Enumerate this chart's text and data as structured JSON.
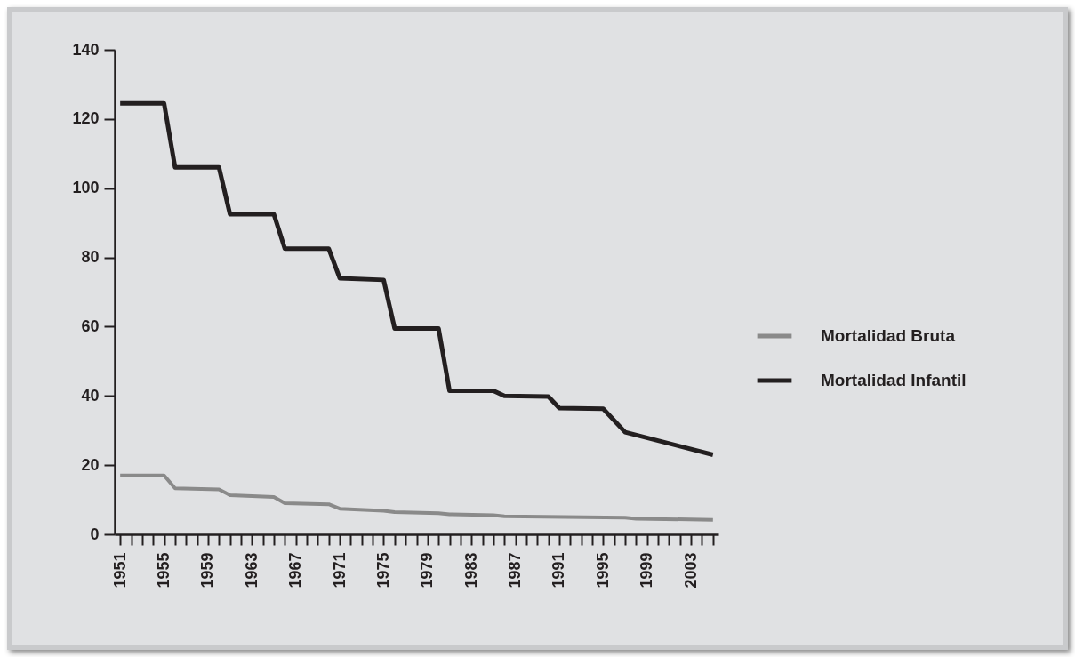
{
  "chart_data": {
    "type": "line",
    "xlim": [
      1950.5,
      2005.5
    ],
    "xticks": [
      1951,
      {
        "value": 1952,
        "label": null
      },
      {
        "value": 1953,
        "label": null
      },
      {
        "value": 1954,
        "label": null
      },
      1955,
      {
        "value": 1956,
        "label": null
      },
      {
        "value": 1957,
        "label": null
      },
      {
        "value": 1958,
        "label": null
      },
      1959,
      {
        "value": 1960,
        "label": null
      },
      {
        "value": 1961,
        "label": null
      },
      {
        "value": 1962,
        "label": null
      },
      1963,
      {
        "value": 1964,
        "label": null
      },
      {
        "value": 1965,
        "label": null
      },
      {
        "value": 1966,
        "label": null
      },
      1967,
      {
        "value": 1968,
        "label": null
      },
      {
        "value": 1969,
        "label": null
      },
      {
        "value": 1970,
        "label": null
      },
      1971,
      {
        "value": 1972,
        "label": null
      },
      {
        "value": 1973,
        "label": null
      },
      {
        "value": 1974,
        "label": null
      },
      1975,
      {
        "value": 1976,
        "label": null
      },
      {
        "value": 1977,
        "label": null
      },
      {
        "value": 1978,
        "label": null
      },
      1979,
      {
        "value": 1980,
        "label": null
      },
      {
        "value": 1981,
        "label": null
      },
      {
        "value": 1982,
        "label": null
      },
      1983,
      {
        "value": 1984,
        "label": null
      },
      {
        "value": 1985,
        "label": null
      },
      {
        "value": 1986,
        "label": null
      },
      1987,
      {
        "value": 1988,
        "label": null
      },
      {
        "value": 1989,
        "label": null
      },
      {
        "value": 1990,
        "label": null
      },
      1991,
      {
        "value": 1992,
        "label": null
      },
      {
        "value": 1993,
        "label": null
      },
      {
        "value": 1994,
        "label": null
      },
      1995,
      {
        "value": 1996,
        "label": null
      },
      {
        "value": 1997,
        "label": null
      },
      {
        "value": 1998,
        "label": null
      },
      1999,
      {
        "value": 2000,
        "label": null
      },
      {
        "value": 2001,
        "label": null
      },
      {
        "value": 2002,
        "label": null
      },
      2003,
      {
        "value": 2004,
        "label": null
      },
      {
        "value": 2005,
        "label": null
      }
    ],
    "ylim": [
      0,
      140
    ],
    "yticks": [
      0,
      20,
      40,
      60,
      80,
      100,
      120,
      140
    ],
    "legend": "right",
    "series": [
      {
        "name": "Mortalidad Bruta",
        "color": "#8a8a8a",
        "x": [
          1951,
          1955,
          1956,
          1960,
          1961,
          1965,
          1966,
          1970,
          1971,
          1975,
          1976,
          1980,
          1981,
          1985,
          1986,
          1997,
          1998,
          2005
        ],
        "values": [
          17,
          17,
          13.3,
          13,
          11.3,
          10.8,
          9,
          8.7,
          7.4,
          6.8,
          6.4,
          6.1,
          5.8,
          5.5,
          5.2,
          4.8,
          4.5,
          4.2
        ]
      },
      {
        "name": "Mortalidad Infantil",
        "color": "#231f20",
        "x": [
          1951,
          1955,
          1956,
          1960,
          1961,
          1965,
          1966,
          1970,
          1971,
          1975,
          1976,
          1980,
          1981,
          1985,
          1986,
          1990,
          1991,
          1995,
          1997,
          2005
        ],
        "values": [
          124.5,
          124.5,
          106,
          106,
          92.5,
          92.5,
          82.5,
          82.5,
          74,
          73.5,
          59.5,
          59.5,
          41.5,
          41.5,
          40,
          39.8,
          36.5,
          36.3,
          29.5,
          23
        ]
      }
    ]
  }
}
